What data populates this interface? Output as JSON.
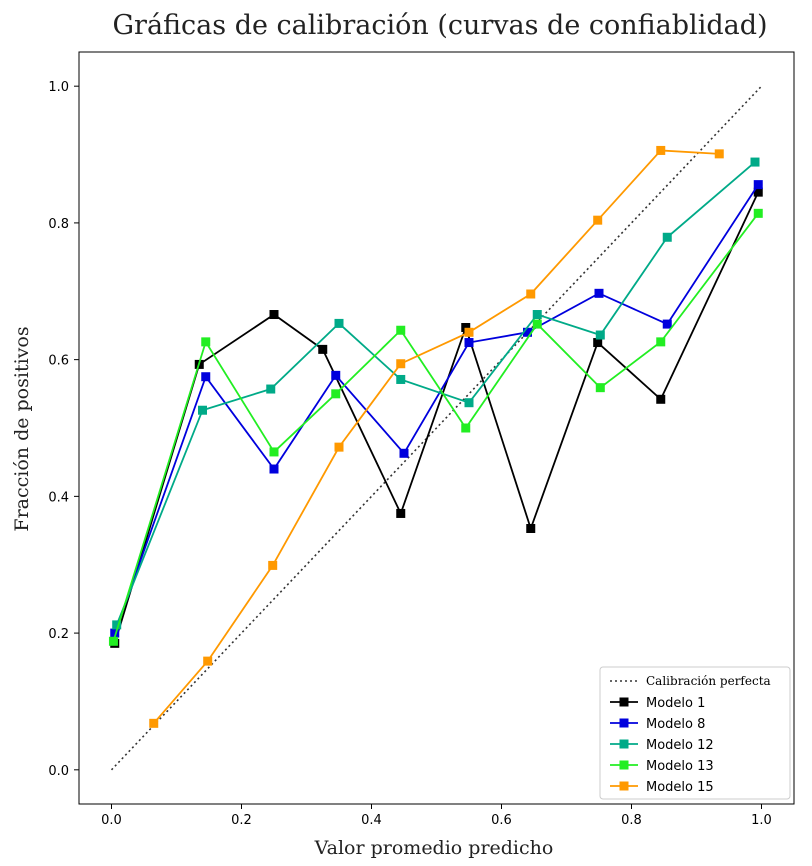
{
  "chart_data": {
    "type": "line",
    "title": "Gráficas de calibración (curvas de confiablidad)",
    "xlabel": "Valor promedio predicho",
    "ylabel": "Fracción de positivos",
    "xlim": [
      -0.05,
      1.05
    ],
    "ylim": [
      -0.05,
      1.05
    ],
    "xticks": [
      "0.0",
      "0.2",
      "0.4",
      "0.6",
      "0.8",
      "1.0"
    ],
    "yticks": [
      "0.0",
      "0.2",
      "0.4",
      "0.6",
      "0.8",
      "1.0"
    ],
    "grid": false,
    "legend_position": "lower-right",
    "reference": {
      "name": "Calibración perfecta",
      "x": [
        0,
        1
      ],
      "y": [
        0,
        1
      ],
      "color": "#333333",
      "style": "dotted"
    },
    "series": [
      {
        "name": "Modelo 1",
        "color": "#000000",
        "x": [
          0.005,
          0.135,
          0.25,
          0.325,
          0.445,
          0.545,
          0.645,
          0.748,
          0.845,
          0.995
        ],
        "y": [
          0.185,
          0.593,
          0.666,
          0.615,
          0.375,
          0.647,
          0.353,
          0.625,
          0.542,
          0.845
        ]
      },
      {
        "name": "Modelo 8",
        "color": "#0000dd",
        "x": [
          0.005,
          0.145,
          0.25,
          0.345,
          0.45,
          0.55,
          0.64,
          0.75,
          0.855,
          0.995
        ],
        "y": [
          0.2,
          0.575,
          0.44,
          0.577,
          0.463,
          0.625,
          0.64,
          0.697,
          0.652,
          0.856
        ]
      },
      {
        "name": "Modelo 12",
        "color": "#00aa88",
        "x": [
          0.008,
          0.14,
          0.245,
          0.35,
          0.445,
          0.55,
          0.655,
          0.752,
          0.855,
          0.99
        ],
        "y": [
          0.212,
          0.526,
          0.557,
          0.653,
          0.571,
          0.537,
          0.666,
          0.636,
          0.779,
          0.889
        ]
      },
      {
        "name": "Modelo 13",
        "color": "#22ee22",
        "x": [
          0.003,
          0.145,
          0.25,
          0.345,
          0.445,
          0.545,
          0.655,
          0.752,
          0.845,
          0.995
        ],
        "y": [
          0.188,
          0.626,
          0.465,
          0.55,
          0.643,
          0.5,
          0.652,
          0.559,
          0.626,
          0.814
        ]
      },
      {
        "name": "Modelo 15",
        "color": "#ff9900",
        "x": [
          0.065,
          0.148,
          0.248,
          0.35,
          0.445,
          0.55,
          0.645,
          0.748,
          0.845,
          0.935
        ],
        "y": [
          0.068,
          0.159,
          0.299,
          0.472,
          0.594,
          0.64,
          0.696,
          0.804,
          0.906,
          0.901
        ]
      }
    ]
  }
}
